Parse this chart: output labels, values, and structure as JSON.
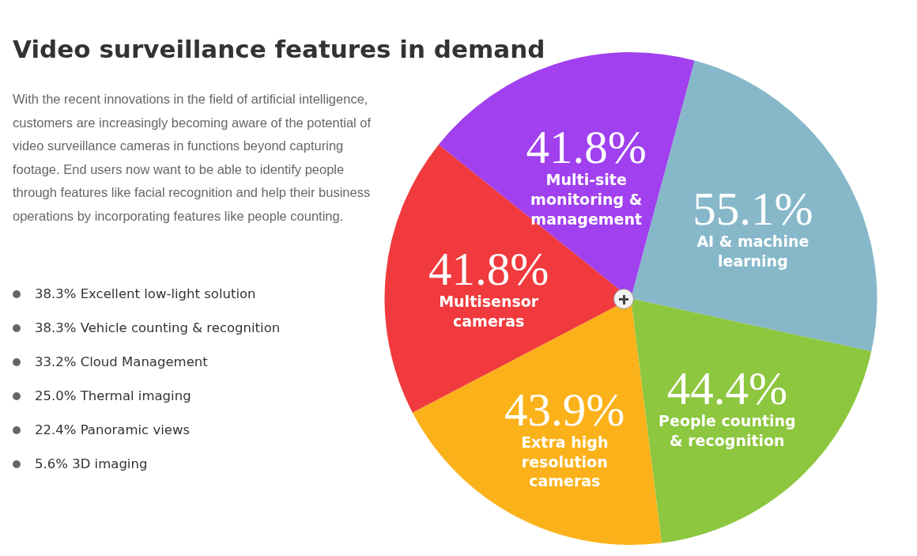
{
  "chart_data": {
    "type": "pie",
    "title": "Video surveillance features in demand",
    "subtitle": "With the recent innovations in the field of artificial intelligence, customers are increasingly becoming aware of the potential of video surveillance cameras in functions beyond capturing footage. End users now want to be able to identify people through features like facial recognition and help their business operations by incorporating features like people counting.",
    "categories": [
      "AI & machine learning",
      "People counting & recognition",
      "Extra high resolution cameras",
      "Multisensor cameras",
      "Multi-site monitoring & management"
    ],
    "values": [
      55.1,
      44.4,
      43.9,
      41.8,
      41.8
    ],
    "value_labels": [
      "55.1%",
      "44.4%",
      "43.9%",
      "41.8%",
      "41.8%"
    ],
    "colors": [
      "#87b8c9",
      "#8dc63f",
      "#fbb21a",
      "#f03a3d",
      "#a040ee"
    ],
    "legend": false,
    "annotations": [
      "38.3% Excellent low-light solution",
      "38.3% Vehicle counting & recognition",
      "33.2% Cloud Management",
      "25.0% Thermal imaging",
      "22.4% Panoramic views",
      "5.6% 3D imaging"
    ]
  }
}
